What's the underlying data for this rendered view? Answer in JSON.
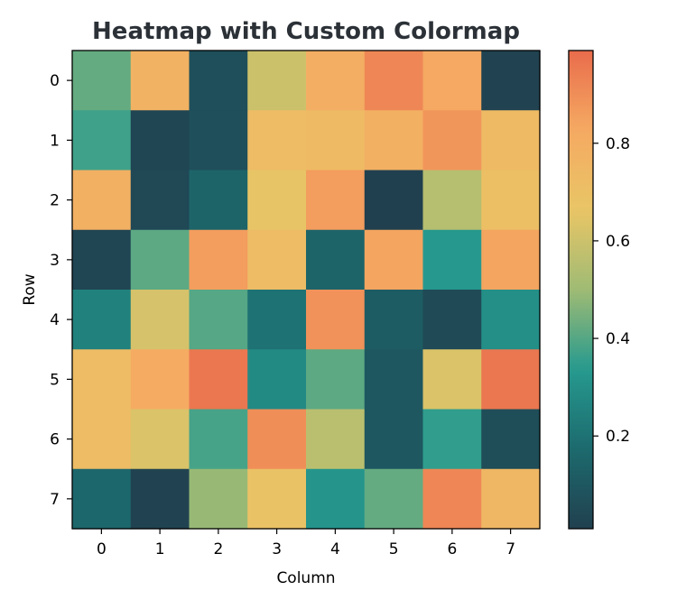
{
  "chart_data": {
    "type": "heatmap",
    "title": "Heatmap with Custom Colormap",
    "xlabel": "Column",
    "ylabel": "Row",
    "x_ticks": [
      "0",
      "1",
      "2",
      "3",
      "4",
      "5",
      "6",
      "7"
    ],
    "y_ticks": [
      "0",
      "1",
      "2",
      "3",
      "4",
      "5",
      "6",
      "7"
    ],
    "values": [
      [
        0.42,
        0.78,
        0.07,
        0.6,
        0.8,
        0.92,
        0.83,
        0.02
      ],
      [
        0.37,
        0.03,
        0.07,
        0.72,
        0.73,
        0.79,
        0.88,
        0.73
      ],
      [
        0.79,
        0.04,
        0.15,
        0.66,
        0.86,
        0.01,
        0.55,
        0.7
      ],
      [
        0.03,
        0.41,
        0.86,
        0.72,
        0.15,
        0.84,
        0.33,
        0.84
      ],
      [
        0.25,
        0.62,
        0.4,
        0.2,
        0.89,
        0.12,
        0.05,
        0.3
      ],
      [
        0.72,
        0.82,
        0.96,
        0.28,
        0.41,
        0.1,
        0.63,
        0.96
      ],
      [
        0.72,
        0.63,
        0.38,
        0.9,
        0.56,
        0.1,
        0.35,
        0.06
      ],
      [
        0.16,
        0.02,
        0.49,
        0.68,
        0.32,
        0.42,
        0.92,
        0.75
      ]
    ],
    "colorbar": {
      "range": [
        0.01,
        0.99
      ],
      "ticks": [
        0.2,
        0.4,
        0.6,
        0.8
      ],
      "tick_labels": [
        "0.2",
        "0.4",
        "0.6",
        "0.8"
      ]
    },
    "colormap": [
      "#21404f",
      "#1c6a6d",
      "#269a8f",
      "#9fbb74",
      "#e9c566",
      "#f5aa62",
      "#e96c4c"
    ],
    "grid": false
  }
}
